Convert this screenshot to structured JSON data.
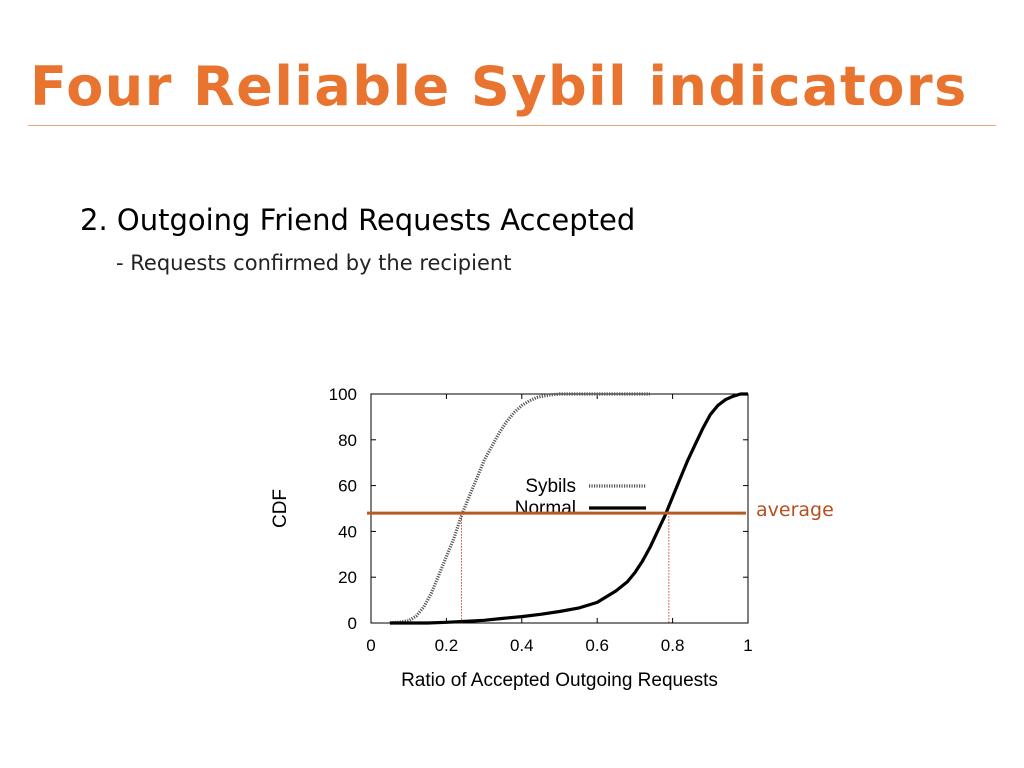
{
  "slide": {
    "title": "Four Reliable Sybil indicators",
    "heading": "2. Outgoing Friend Requests Accepted",
    "subpoint": "- Requests confirmed by the recipient"
  },
  "colors": {
    "title": "#E8742F",
    "rule": "#E9A57F",
    "average_line": "#B85A22",
    "average_text": "#B5501C",
    "guide_lines": "#D0452A"
  },
  "chart_data": {
    "type": "line",
    "xlabel": "Ratio of Accepted Outgoing Requests",
    "ylabel": "CDF",
    "xlim": [
      0,
      1
    ],
    "ylim": [
      0,
      100
    ],
    "x_ticks": [
      "0",
      "0.2",
      "0.4",
      "0.6",
      "0.8",
      "1"
    ],
    "y_ticks": [
      "0",
      "20",
      "40",
      "60",
      "80",
      "100"
    ],
    "grid": false,
    "legend_position": "center",
    "series": [
      {
        "name": "Sybils",
        "style": "dotted",
        "x": [
          0.05,
          0.08,
          0.1,
          0.12,
          0.14,
          0.16,
          0.18,
          0.2,
          0.22,
          0.24,
          0.26,
          0.28,
          0.3,
          0.32,
          0.34,
          0.36,
          0.38,
          0.4,
          0.42,
          0.44,
          0.47,
          0.5,
          0.55,
          0.6,
          0.65,
          0.7,
          0.74
        ],
        "values": [
          0,
          0.5,
          1,
          3,
          7,
          13,
          21,
          29,
          37,
          47,
          55,
          63,
          71,
          77,
          83,
          88,
          92,
          95,
          97,
          98.5,
          99.5,
          100,
          100,
          100,
          100,
          100,
          100
        ]
      },
      {
        "name": "Normal",
        "style": "solid",
        "x": [
          0.05,
          0.1,
          0.15,
          0.2,
          0.25,
          0.3,
          0.35,
          0.4,
          0.45,
          0.5,
          0.55,
          0.6,
          0.65,
          0.68,
          0.7,
          0.72,
          0.74,
          0.76,
          0.78,
          0.8,
          0.82,
          0.84,
          0.86,
          0.88,
          0.9,
          0.92,
          0.94,
          0.96,
          0.98,
          1.0
        ],
        "values": [
          0,
          0,
          0,
          0.3,
          0.7,
          1.2,
          2,
          2.8,
          3.8,
          5,
          6.5,
          9,
          14,
          18,
          22,
          27,
          33,
          40,
          47,
          55,
          63,
          71,
          78,
          85,
          91,
          95,
          97.5,
          99,
          100,
          100
        ]
      }
    ],
    "reference_line": {
      "label": "average",
      "y": 48
    },
    "guide_lines_x": [
      0.24,
      0.79
    ]
  }
}
